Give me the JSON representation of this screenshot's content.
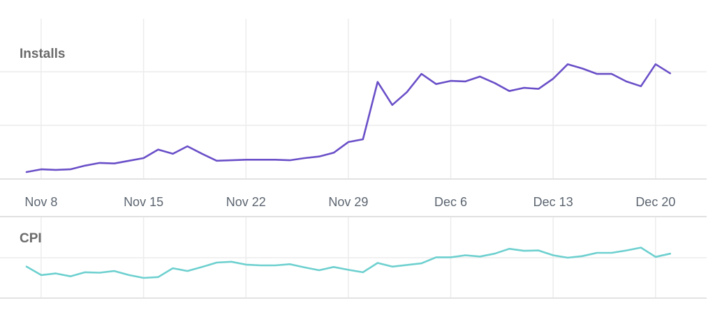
{
  "chart_data": [
    {
      "type": "line",
      "title": "Installs",
      "xlabel": "",
      "ylabel": "",
      "units_note_visible": false,
      "y_gridlines": [
        100,
        200
      ],
      "ylim": [
        0,
        300
      ],
      "grid": true,
      "x_ticks": [
        "Nov 8",
        "Nov 15",
        "Nov 22",
        "Nov 29",
        "Dec 6",
        "Dec 13",
        "Dec 20"
      ],
      "x": [
        "Nov 7",
        "Nov 8",
        "Nov 9",
        "Nov 10",
        "Nov 11",
        "Nov 12",
        "Nov 13",
        "Nov 14",
        "Nov 15",
        "Nov 16",
        "Nov 17",
        "Nov 18",
        "Nov 19",
        "Nov 20",
        "Nov 21",
        "Nov 22",
        "Nov 23",
        "Nov 24",
        "Nov 25",
        "Nov 26",
        "Nov 27",
        "Nov 28",
        "Nov 29",
        "Nov 30",
        "Dec 1",
        "Dec 2",
        "Dec 3",
        "Dec 4",
        "Dec 5",
        "Dec 6",
        "Dec 7",
        "Dec 8",
        "Dec 9",
        "Dec 10",
        "Dec 11",
        "Dec 12",
        "Dec 13",
        "Dec 14",
        "Dec 15",
        "Dec 16",
        "Dec 17",
        "Dec 18",
        "Dec 19",
        "Dec 20",
        "Dec 21"
      ],
      "series": [
        {
          "name": "Installs",
          "color": "#6a4fc8",
          "values": [
            13,
            18,
            17,
            18,
            25,
            30,
            29,
            34,
            39,
            55,
            47,
            61,
            47,
            34,
            35,
            36,
            36,
            36,
            35,
            39,
            42,
            49,
            69,
            74,
            181,
            138,
            162,
            196,
            177,
            183,
            182,
            191,
            179,
            164,
            170,
            168,
            187,
            214,
            206,
            196,
            196,
            182,
            173,
            214,
            197
          ]
        }
      ]
    },
    {
      "type": "line",
      "title": "CPI",
      "xlabel": "",
      "ylabel": "",
      "y_gridlines": [
        100
      ],
      "ylim": [
        0,
        200
      ],
      "grid": true,
      "x": [
        "Nov 7",
        "Nov 8",
        "Nov 9",
        "Nov 10",
        "Nov 11",
        "Nov 12",
        "Nov 13",
        "Nov 14",
        "Nov 15",
        "Nov 16",
        "Nov 17",
        "Nov 18",
        "Nov 19",
        "Nov 20",
        "Nov 21",
        "Nov 22",
        "Nov 23",
        "Nov 24",
        "Nov 25",
        "Nov 26",
        "Nov 27",
        "Nov 28",
        "Nov 29",
        "Nov 30",
        "Dec 1",
        "Dec 2",
        "Dec 3",
        "Dec 4",
        "Dec 5",
        "Dec 6",
        "Dec 7",
        "Dec 8",
        "Dec 9",
        "Dec 10",
        "Dec 11",
        "Dec 12",
        "Dec 13",
        "Dec 14",
        "Dec 15",
        "Dec 16",
        "Dec 17",
        "Dec 18",
        "Dec 19",
        "Dec 20",
        "Dec 21"
      ],
      "series": [
        {
          "name": "CPI",
          "color": "#6dd0cf",
          "values": [
            78,
            57,
            61,
            54,
            64,
            63,
            67,
            57,
            50,
            52,
            74,
            67,
            77,
            88,
            90,
            83,
            81,
            81,
            84,
            76,
            69,
            77,
            70,
            64,
            87,
            78,
            82,
            86,
            101,
            101,
            106,
            103,
            110,
            122,
            117,
            118,
            106,
            100,
            104,
            112,
            112,
            118,
            125,
            102,
            110
          ]
        }
      ]
    }
  ]
}
